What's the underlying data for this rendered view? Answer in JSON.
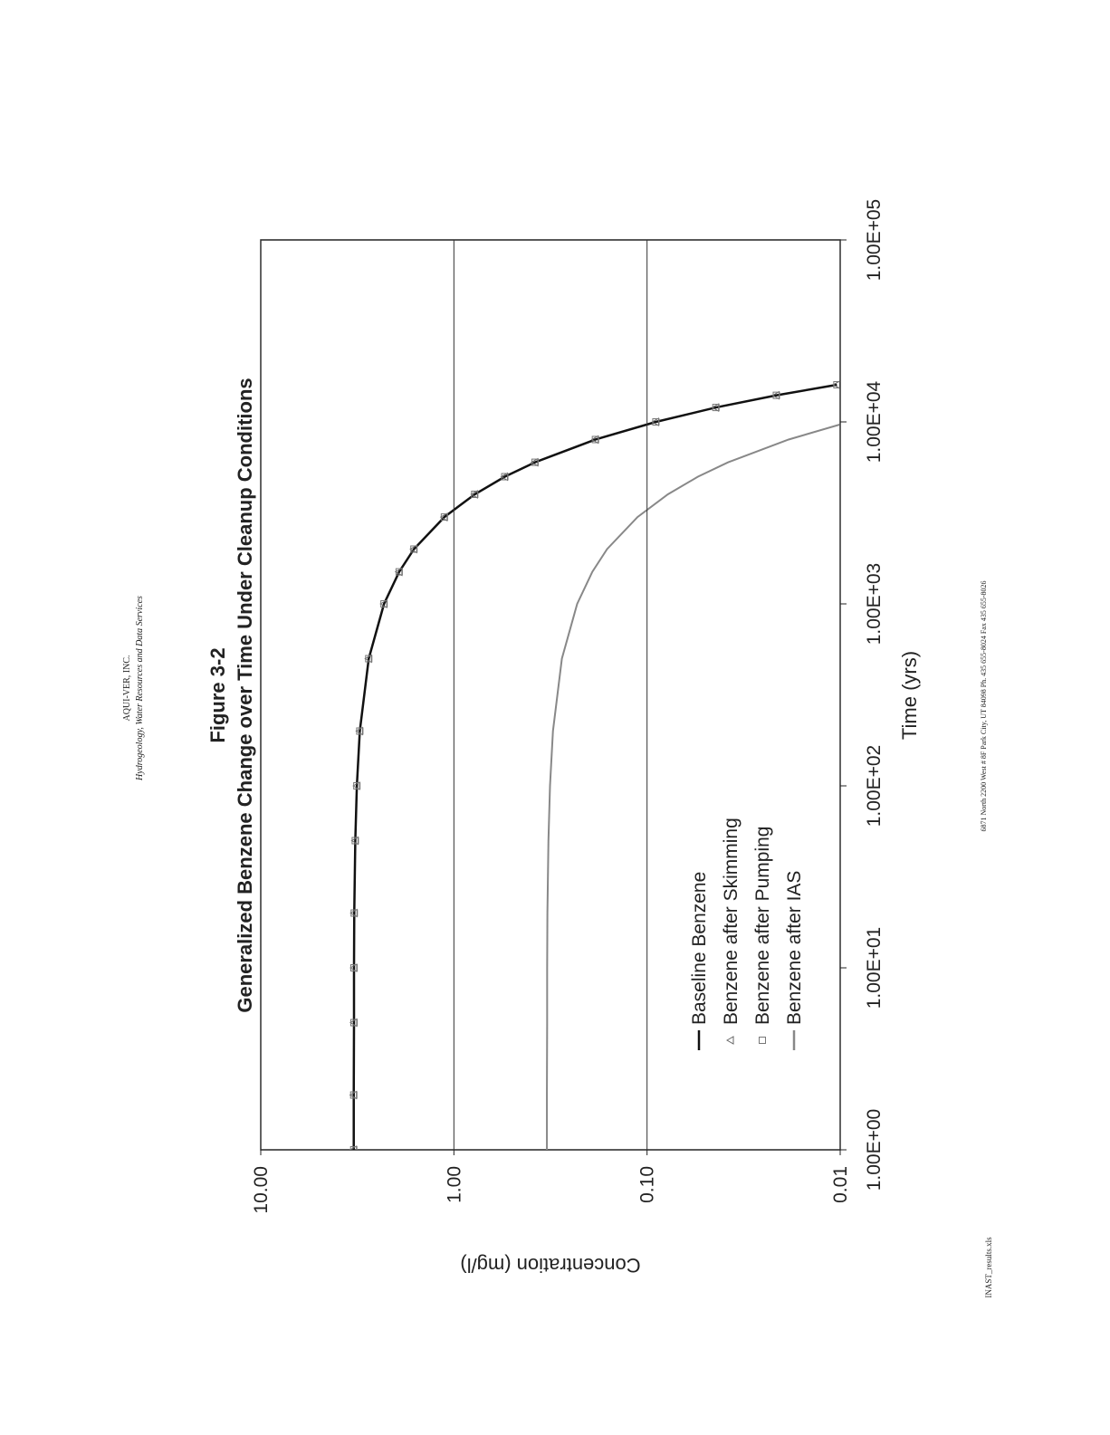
{
  "header": {
    "company": "AQUI-VER, INC.",
    "tagline": "Hydrogeology, Water Resources and Data Services"
  },
  "chart_data": {
    "type": "line",
    "title": "Figure 3-2",
    "subtitle": "Generalized Benzene Change over Time Under Cleanup Conditions",
    "x_label": "Time (yrs)",
    "y_label": "Concentration (mg/l)",
    "xscale": "log",
    "yscale": "log",
    "x": [
      1,
      2,
      5,
      10,
      20,
      50,
      100,
      200,
      500,
      1000,
      1500,
      2000,
      3000,
      4000,
      5000,
      6000,
      8000,
      10000,
      12000,
      14000,
      16000
    ],
    "xlim": [
      1,
      100000
    ],
    "xticks": [
      {
        "value": 1,
        "label": "1.00E+00"
      },
      {
        "value": 10,
        "label": "1.00E+01"
      },
      {
        "value": 100,
        "label": "1.00E+02"
      },
      {
        "value": 1000,
        "label": "1.00E+03"
      },
      {
        "value": 10000,
        "label": "1.00E+04"
      },
      {
        "value": 100000,
        "label": "1.00E+05"
      }
    ],
    "ylim": [
      0.01,
      10
    ],
    "yticks": [
      {
        "value": 0.01,
        "label": "0.01"
      },
      {
        "value": 0.1,
        "label": "0.10"
      },
      {
        "value": 1,
        "label": "1.00"
      },
      {
        "value": 10,
        "label": "10.00"
      }
    ],
    "grid": "y",
    "series": [
      {
        "name": "Baseline Benzene",
        "color": "#111111",
        "marker": "none",
        "values": [
          3.3,
          3.3,
          3.29,
          3.29,
          3.28,
          3.24,
          3.18,
          3.07,
          2.76,
          2.3,
          1.92,
          1.61,
          1.12,
          0.78,
          0.545,
          0.38,
          0.185,
          0.09,
          0.044,
          0.0214,
          0.0104
        ]
      },
      {
        "name": "Benzene after Skimming",
        "color": "#666666",
        "marker": "triangle",
        "values": [
          3.3,
          3.3,
          3.29,
          3.29,
          3.28,
          3.24,
          3.18,
          3.07,
          2.76,
          2.3,
          1.92,
          1.61,
          1.12,
          0.78,
          0.545,
          0.38,
          0.185,
          0.09,
          0.044,
          0.0214,
          0.0104
        ]
      },
      {
        "name": "Benzene after Pumping",
        "color": "#777777",
        "marker": "square",
        "values": [
          3.3,
          3.3,
          3.29,
          3.29,
          3.28,
          3.24,
          3.18,
          3.07,
          2.76,
          2.3,
          1.92,
          1.61,
          1.12,
          0.78,
          0.545,
          0.38,
          0.185,
          0.09,
          0.044,
          0.0214,
          0.0104
        ]
      },
      {
        "name": "Benzene after IAS",
        "color": "#888888",
        "marker": "none",
        "values": [
          0.33,
          0.33,
          0.329,
          0.329,
          0.328,
          0.324,
          0.318,
          0.307,
          0.276,
          0.23,
          0.192,
          0.161,
          0.112,
          0.078,
          0.0545,
          0.038,
          0.0185,
          0.009,
          null,
          null,
          null
        ]
      }
    ]
  },
  "footer": {
    "address": "6871 North 2200 West # 8F Park City, UT 84098   Ph. 435 655-8024   Fax 435 655-8026",
    "filename": "INAST_results.xls"
  }
}
